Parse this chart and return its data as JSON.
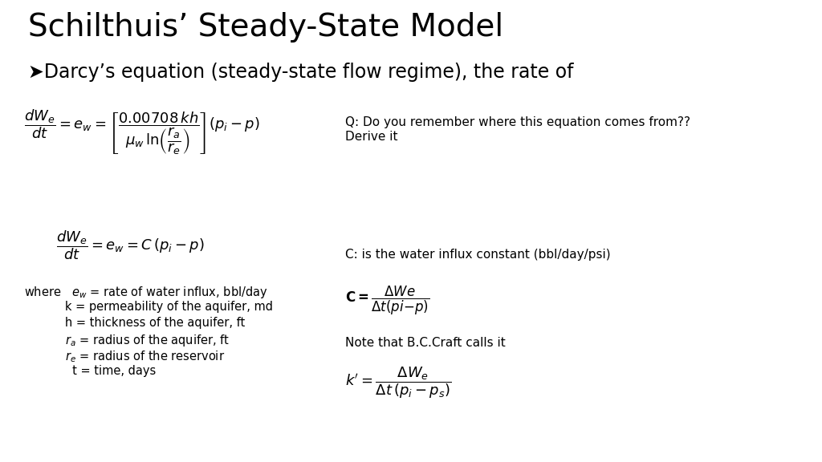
{
  "title": "Schilthuis’ Steady-State Model",
  "subtitle": "➤Darcy’s equation (steady-state flow regime), the rate of",
  "bg_color": "#ffffff",
  "title_fontsize": 28,
  "subtitle_fontsize": 17,
  "note_q": "Q: Do you remember where this equation comes from??\nDerive it",
  "note_c": "C: is the water influx constant (bbl/day/psi)",
  "note_bc": "Note that B.C.Craft calls it",
  "eq1_fontsize": 13,
  "eq2_fontsize": 13,
  "eq3_fontsize": 12,
  "eq4_fontsize": 13,
  "note_fontsize": 11,
  "where_fontsize": 10.5
}
